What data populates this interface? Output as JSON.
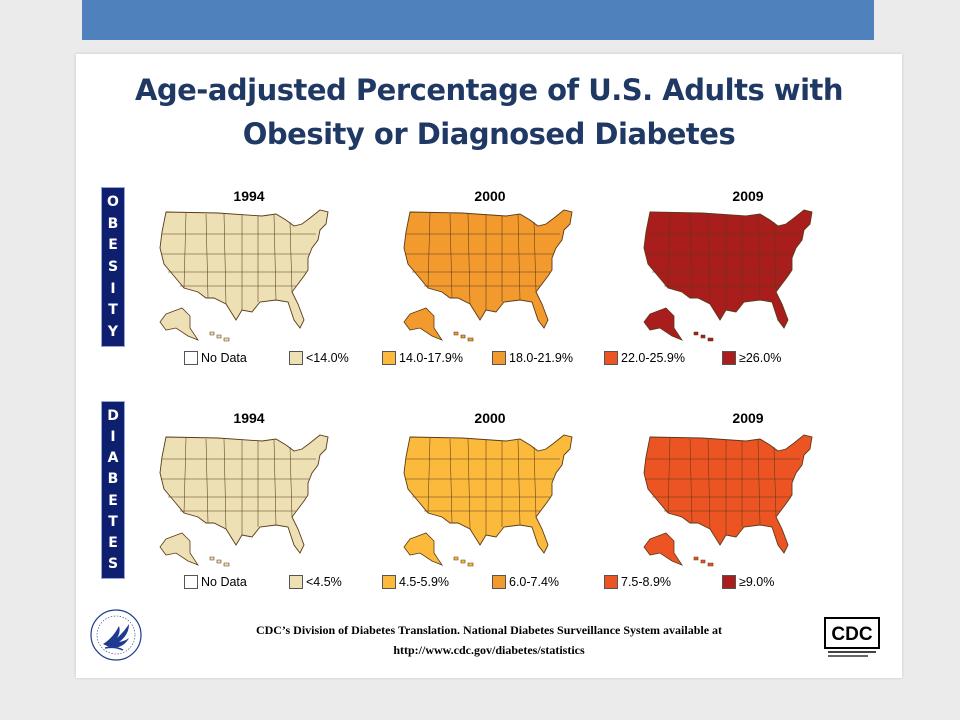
{
  "title": {
    "line1": "Age-adjusted Percentage of U.S. Adults with",
    "line2": "Obesity or Diagnosed Diabetes"
  },
  "rows": [
    {
      "label_letters": [
        "O",
        "B",
        "E",
        "S",
        "I",
        "T",
        "Y"
      ],
      "years": [
        "1994",
        "2000",
        "2009"
      ],
      "map_levels": [
        1,
        3,
        5
      ],
      "legend": [
        "No Data",
        "<14.0%",
        "14.0-17.9%",
        "18.0-21.9%",
        "22.0-25.9%",
        "≥26.0%"
      ]
    },
    {
      "label_letters": [
        "D",
        "I",
        "A",
        "B",
        "E",
        "T",
        "E",
        "S"
      ],
      "years": [
        "1994",
        "2000",
        "2009"
      ],
      "map_levels": [
        1,
        2,
        4
      ],
      "legend": [
        "No Data",
        "<4.5%",
        "4.5-5.9%",
        "6.0-7.4%",
        "7.5-8.9%",
        "≥9.0%"
      ]
    }
  ],
  "legend_colors": [
    "#ffffff",
    "#ede0b4",
    "#fcba3c",
    "#f29a2d",
    "#ec5523",
    "#a91d1d"
  ],
  "footer": {
    "line1": "CDC’s Division of Diabetes Translation. National Diabetes Surveillance System available at",
    "line2": "http://www.cdc.gov/diabetes/statistics"
  },
  "logos": {
    "cdc_text": "CDC"
  },
  "colors": {
    "top_band": "#4f81bd",
    "title": "#1f3864",
    "side_label": "#0d1f6e"
  }
}
